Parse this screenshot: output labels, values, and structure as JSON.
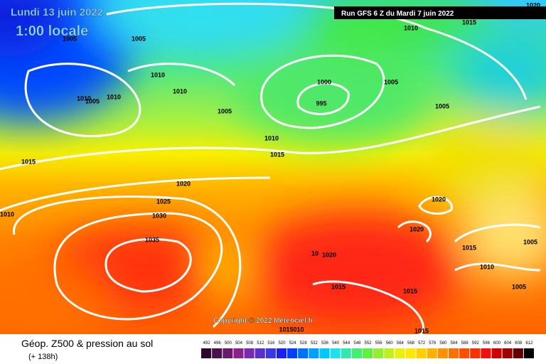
{
  "header": {
    "date": "Lundi 13 juin 2022",
    "time": "1:00 locale",
    "run": "Run GFS 6 Z du Mardi 7 juin 2022"
  },
  "copyright": "Copyright © 2022 Meteociel.fr",
  "isobar_labels": [
    "1020",
    "1015",
    "1010",
    "1005",
    "1005",
    "1010",
    "1010",
    "1010",
    "1010",
    "1005",
    "1005",
    "1000",
    "995",
    "1005",
    "1005",
    "1010",
    "1015",
    "1015",
    "1020",
    "1025",
    "1030",
    "1010",
    "1035",
    "1020",
    "1020",
    "1015",
    "1005",
    "1010",
    "10",
    "1020",
    "1015",
    "1015",
    "1005",
    "1015",
    "1015010"
  ],
  "footer": {
    "title": "Géop. Z500 & pression au sol",
    "subtitle": "(+ 138h)"
  },
  "legend": [
    {
      "value": 492,
      "color": "#2a0a2a"
    },
    {
      "value": 496,
      "color": "#4a124a"
    },
    {
      "value": 500,
      "color": "#6a1a6a"
    },
    {
      "value": 504,
      "color": "#8a228a"
    },
    {
      "value": 508,
      "color": "#7a2ab0"
    },
    {
      "value": 512,
      "color": "#5a30c8"
    },
    {
      "value": 516,
      "color": "#3a38e0"
    },
    {
      "value": 520,
      "color": "#1a20f0"
    },
    {
      "value": 524,
      "color": "#0040ff"
    },
    {
      "value": 528,
      "color": "#0070ff"
    },
    {
      "value": 532,
      "color": "#00a0ff"
    },
    {
      "value": 536,
      "color": "#00c8ff"
    },
    {
      "value": 540,
      "color": "#20e0f0"
    },
    {
      "value": 544,
      "color": "#30e8b0"
    },
    {
      "value": 548,
      "color": "#40f070"
    },
    {
      "value": 552,
      "color": "#60f040"
    },
    {
      "value": 556,
      "color": "#90f030"
    },
    {
      "value": 560,
      "color": "#c0f020"
    },
    {
      "value": 564,
      "color": "#e8f010"
    },
    {
      "value": 568,
      "color": "#ffe800"
    },
    {
      "value": 572,
      "color": "#ffd000"
    },
    {
      "value": 576,
      "color": "#ffb000"
    },
    {
      "value": 580,
      "color": "#ff9000"
    },
    {
      "value": 584,
      "color": "#ff7000"
    },
    {
      "value": 588,
      "color": "#ff5000"
    },
    {
      "value": 592,
      "color": "#ff3000"
    },
    {
      "value": 596,
      "color": "#f01010"
    },
    {
      "value": 600,
      "color": "#d00000"
    },
    {
      "value": 604,
      "color": "#a00000"
    },
    {
      "value": 608,
      "color": "#600000"
    },
    {
      "value": 612,
      "color": "#000000"
    }
  ]
}
